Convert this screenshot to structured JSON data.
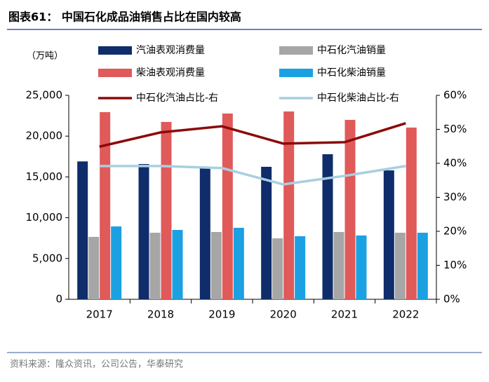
{
  "title": "图表61：  中国石化成品油销售占比在国内较高",
  "source": "资料来源：隆众资讯，公司公告，华泰研究",
  "chart_data": {
    "type": "bar",
    "y_unit": "（万吨）",
    "categories": [
      "2017",
      "2018",
      "2019",
      "2020",
      "2021",
      "2022"
    ],
    "series": [
      {
        "name": "汽油表观消费量",
        "color": "#0f2d6b",
        "values": [
          16900,
          16580,
          16070,
          16240,
          17780,
          15800
        ]
      },
      {
        "name": "中石化汽油销量",
        "color": "#a6a6a6",
        "values": [
          7650,
          8160,
          8250,
          7470,
          8250,
          8160
        ]
      },
      {
        "name": "柴油表观消费量",
        "color": "#e05a5a",
        "values": [
          22940,
          21740,
          22770,
          23020,
          21990,
          21050
        ]
      },
      {
        "name": "中石化柴油销量",
        "color": "#1ba1e2",
        "values": [
          8930,
          8500,
          8760,
          7730,
          7820,
          8160
        ]
      },
      {
        "name": "中石化汽油占比-右",
        "color": "#8b0a0a",
        "type": "line",
        "axis": "y2",
        "values": [
          44.9,
          49.1,
          50.9,
          45.8,
          46.2,
          51.8
        ]
      },
      {
        "name": "中石化柴油占比-右",
        "color": "#a9cfe0",
        "type": "line",
        "axis": "y2",
        "values": [
          39.2,
          39.2,
          38.6,
          33.8,
          36.3,
          39.2
        ]
      }
    ],
    "ylim": [
      0,
      25000
    ],
    "yticks": [
      {
        "value": 0,
        "label": "0"
      },
      {
        "value": 5000,
        "label": "5,000"
      },
      {
        "value": 10000,
        "label": "10,000"
      },
      {
        "value": 15000,
        "label": "15,000"
      },
      {
        "value": 20000,
        "label": "20,000"
      },
      {
        "value": 25000,
        "label": "25,000"
      }
    ],
    "y2lim": [
      0,
      60
    ],
    "y2ticks": [
      {
        "value": 0,
        "label": "0%"
      },
      {
        "value": 10,
        "label": "10%"
      },
      {
        "value": 20,
        "label": "20%"
      },
      {
        "value": 30,
        "label": "30%"
      },
      {
        "value": 40,
        "label": "40%"
      },
      {
        "value": 50,
        "label": "50%"
      },
      {
        "value": 60,
        "label": "60%"
      }
    ],
    "grid": false
  }
}
